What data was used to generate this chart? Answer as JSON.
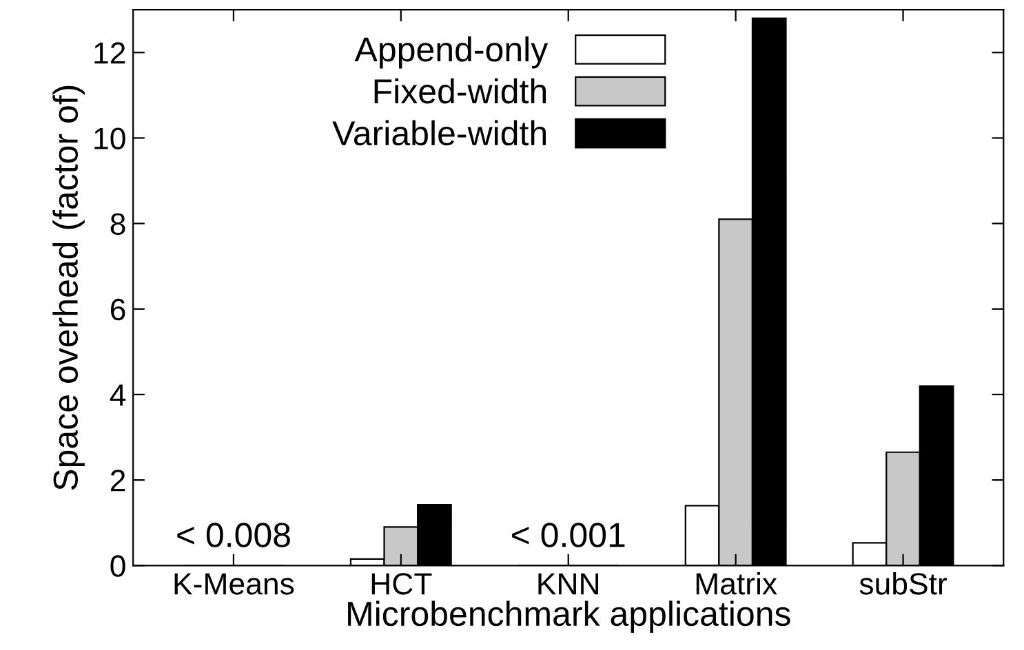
{
  "chart_data": {
    "type": "bar",
    "xlabel": "Microbenchmark applications",
    "ylabel": "Space overhead (factor of)",
    "categories": [
      "K-Means",
      "HCT",
      "KNN",
      "Matrix",
      "subStr"
    ],
    "series": [
      {
        "name": "Append-only",
        "color": "#ffffff",
        "values": [
          0,
          0.15,
          0,
          1.4,
          0.53
        ]
      },
      {
        "name": "Fixed-width",
        "color": "#c8c8c8",
        "values": [
          0,
          0.9,
          0,
          8.1,
          2.65
        ]
      },
      {
        "name": "Variable-width",
        "color": "#000000",
        "values": [
          0,
          1.42,
          0,
          12.8,
          4.2
        ]
      }
    ],
    "annotations": [
      {
        "text": "< 0.008",
        "x": "K-Means",
        "y": 0
      },
      {
        "text": "< 0.001",
        "x": "KNN",
        "y": 0
      }
    ],
    "ylim": [
      0,
      13
    ],
    "yticks": [
      0,
      2,
      4,
      6,
      8,
      10,
      12
    ],
    "grid": false,
    "legend": "top"
  }
}
